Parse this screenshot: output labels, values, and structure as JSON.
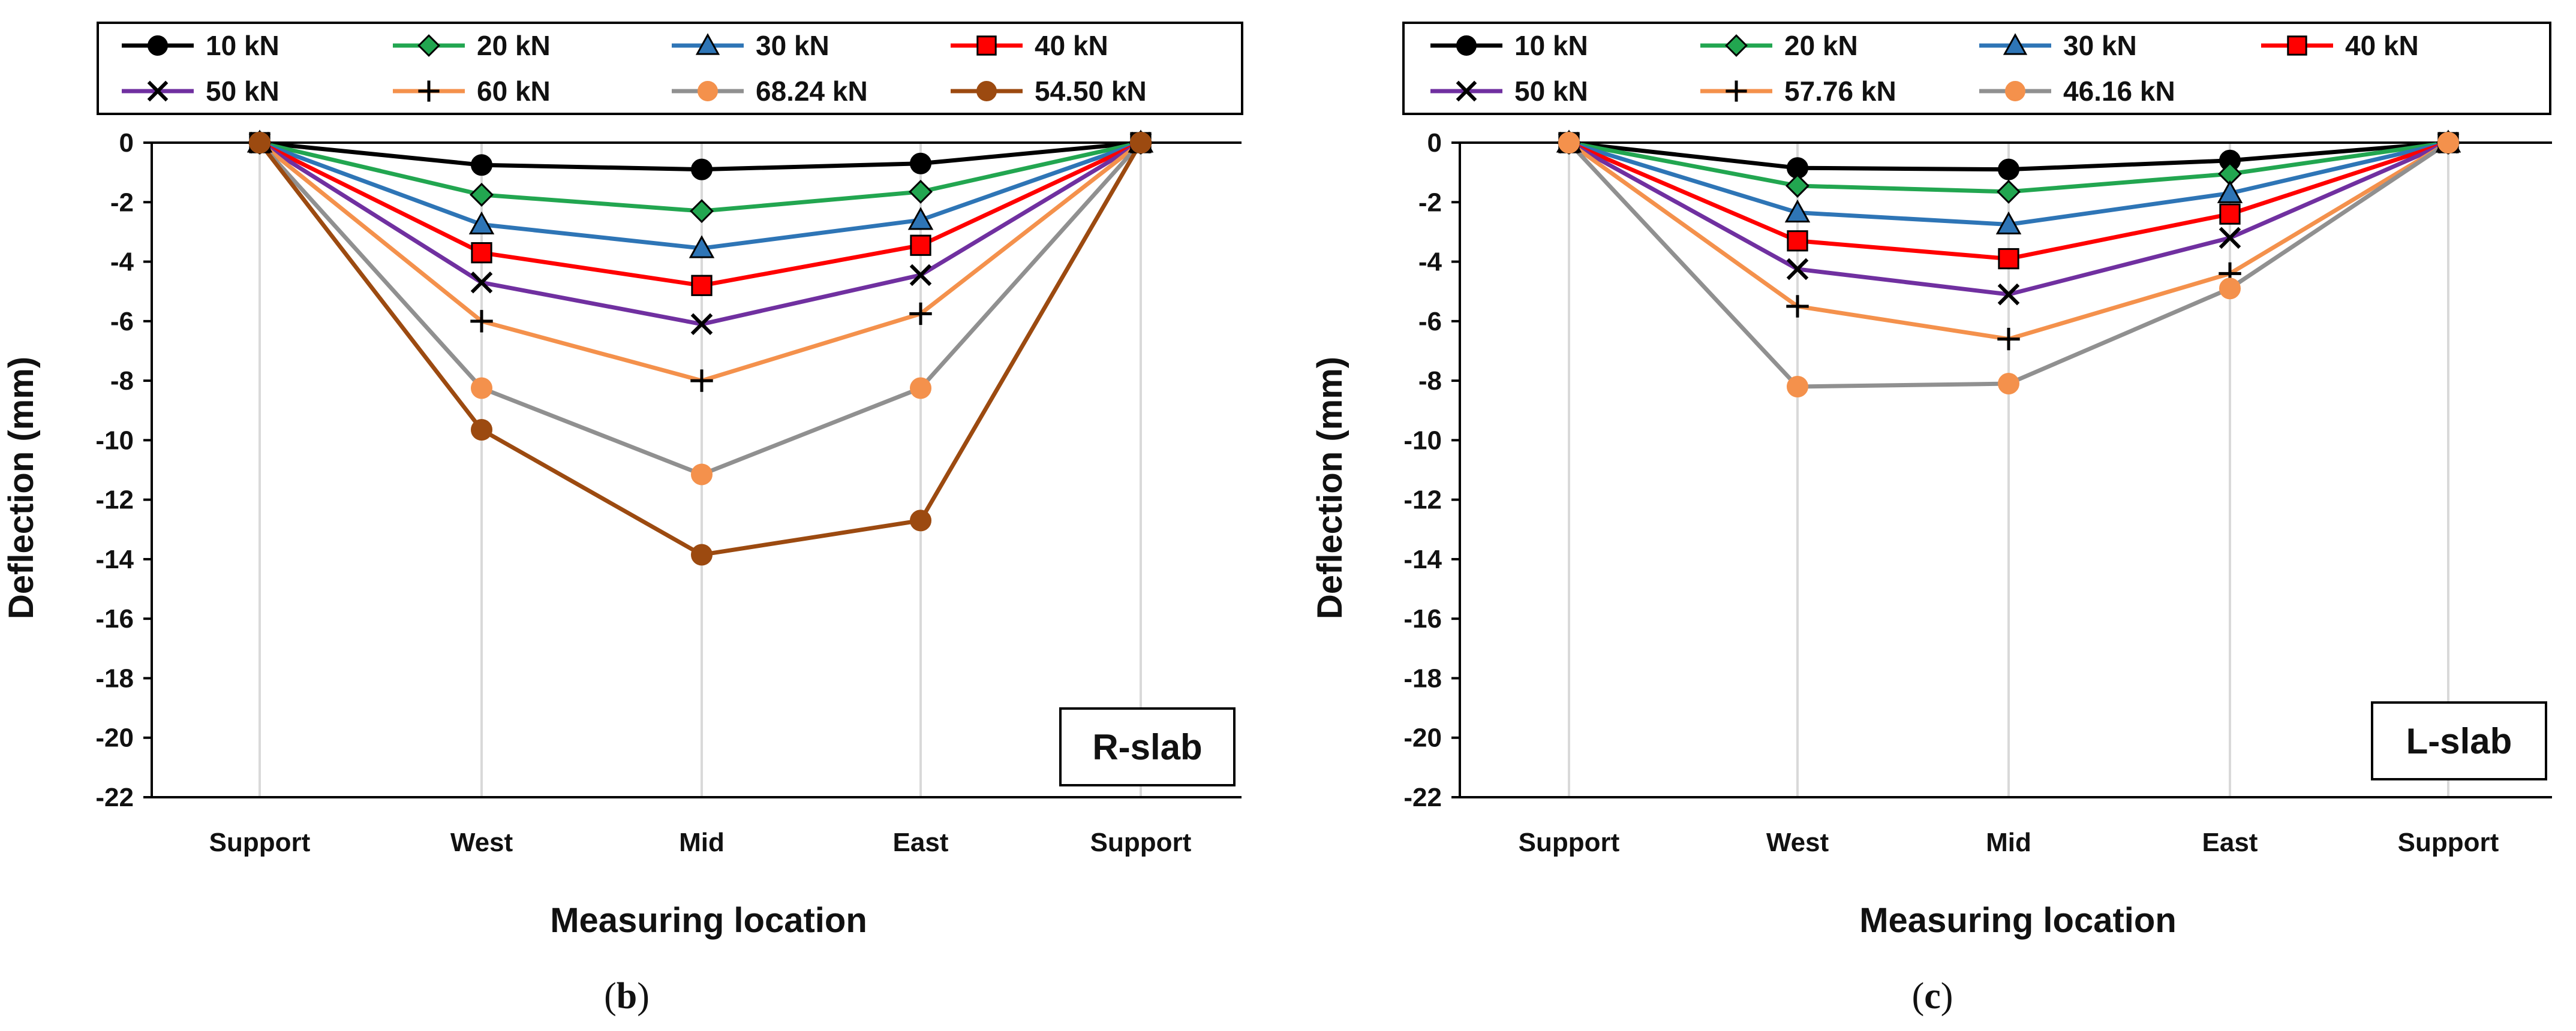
{
  "chart_data": [
    {
      "type": "line",
      "panel": "b",
      "caption_open": "(",
      "caption_letter": "b",
      "caption_close": ")",
      "box_label": "R-slab",
      "xlabel": "Measuring location",
      "ylabel": "Deflection (mm)",
      "categories": [
        "Support",
        "West",
        "Mid",
        "East",
        "Support"
      ],
      "ylim": [
        -22,
        0
      ],
      "yticks": [
        "0",
        "-2",
        "-4",
        "-6",
        "-8",
        "-10",
        "-12",
        "-14",
        "-16",
        "-18",
        "-20",
        "-22"
      ],
      "grid": "vertical",
      "legend_position": "top",
      "series": [
        {
          "name": "10 kN",
          "color": "#000000",
          "marker": "circle",
          "values": [
            0,
            -0.75,
            -0.9,
            -0.7,
            0
          ]
        },
        {
          "name": "20 kN",
          "color": "#22a650",
          "marker": "diamond",
          "values": [
            0,
            -1.75,
            -2.3,
            -1.65,
            0
          ]
        },
        {
          "name": "30 kN",
          "color": "#2e75b6",
          "marker": "triangle",
          "values": [
            0,
            -2.75,
            -3.55,
            -2.6,
            0
          ]
        },
        {
          "name": "40 kN",
          "color": "#ff0000",
          "marker": "square",
          "values": [
            0,
            -3.7,
            -4.8,
            -3.45,
            0
          ]
        },
        {
          "name": "50 kN",
          "color": "#7030a0",
          "marker": "x",
          "values": [
            0,
            -4.7,
            -6.1,
            -4.45,
            0
          ]
        },
        {
          "name": "60 kN",
          "color": "#f4914c",
          "marker": "plus",
          "values": [
            0,
            -6.0,
            -8.0,
            -5.75,
            0
          ]
        },
        {
          "name": "68.24 kN",
          "color": "#909090",
          "marker": "circle-orange",
          "values": [
            0,
            -8.25,
            -11.15,
            -8.25,
            0
          ]
        },
        {
          "name": "54.50 kN",
          "color": "#9c4a10",
          "marker": "circle",
          "values": [
            0,
            -9.65,
            -13.85,
            -12.7,
            0
          ]
        }
      ]
    },
    {
      "type": "line",
      "panel": "c",
      "caption_open": "(",
      "caption_letter": "c",
      "caption_close": ")",
      "box_label": "L-slab",
      "xlabel": "Measuring location",
      "ylabel": "Deflection (mm)",
      "categories": [
        "Support",
        "West",
        "Mid",
        "East",
        "Support"
      ],
      "ylim": [
        -22,
        0
      ],
      "yticks": [
        "0",
        "-2",
        "-4",
        "-6",
        "-8",
        "-10",
        "-12",
        "-14",
        "-16",
        "-18",
        "-20",
        "-22"
      ],
      "grid": "vertical",
      "legend_position": "top",
      "series": [
        {
          "name": "10 kN",
          "color": "#000000",
          "marker": "circle",
          "values": [
            0,
            -0.85,
            -0.9,
            -0.6,
            0
          ]
        },
        {
          "name": "20 kN",
          "color": "#22a650",
          "marker": "diamond",
          "values": [
            0,
            -1.45,
            -1.65,
            -1.05,
            0
          ]
        },
        {
          "name": "30 kN",
          "color": "#2e75b6",
          "marker": "triangle",
          "values": [
            0,
            -2.35,
            -2.75,
            -1.7,
            0
          ]
        },
        {
          "name": "40 kN",
          "color": "#ff0000",
          "marker": "square",
          "values": [
            0,
            -3.3,
            -3.9,
            -2.4,
            0
          ]
        },
        {
          "name": "50 kN",
          "color": "#7030a0",
          "marker": "x",
          "values": [
            0,
            -4.25,
            -5.1,
            -3.2,
            0
          ]
        },
        {
          "name": "57.76 kN",
          "color": "#f4914c",
          "marker": "plus",
          "values": [
            0,
            -5.5,
            -6.6,
            -4.4,
            0
          ]
        },
        {
          "name": "46.16 kN",
          "color": "#909090",
          "marker": "circle-orange",
          "values": [
            0,
            -8.2,
            -8.1,
            -4.9,
            0
          ]
        }
      ]
    }
  ],
  "colors": {
    "grid": "#d9d9d9",
    "marker_orange": "#f4914c"
  }
}
